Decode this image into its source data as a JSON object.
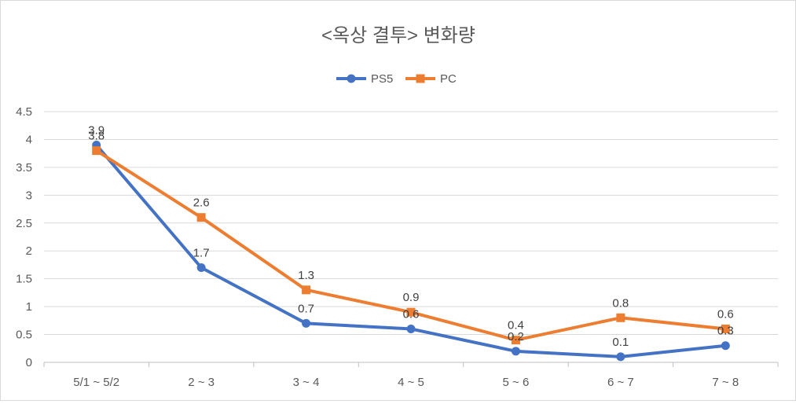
{
  "chart_data": {
    "type": "line",
    "title": "<옥상 결투> 변화량",
    "categories": [
      "5/1 ~ 5/2",
      "2 ~ 3",
      "3 ~ 4",
      "4 ~ 5",
      "5 ~ 6",
      "6 ~ 7",
      "7 ~ 8"
    ],
    "series": [
      {
        "name": "PS5",
        "values": [
          3.9,
          1.7,
          0.7,
          0.6,
          0.2,
          0.1,
          0.3
        ],
        "color": "#4472C4",
        "marker": "circle"
      },
      {
        "name": "PC",
        "values": [
          3.8,
          2.6,
          1.3,
          0.9,
          0.4,
          0.8,
          0.6
        ],
        "color": "#ED7D31",
        "marker": "square"
      }
    ],
    "ylim": [
      0,
      4.5
    ],
    "yticks": [
      "0",
      "0.5",
      "1",
      "1.5",
      "2",
      "2.5",
      "3",
      "3.5",
      "4",
      "4.5"
    ],
    "xlabel": "",
    "ylabel": "",
    "grid": true,
    "legend_position": "top"
  }
}
